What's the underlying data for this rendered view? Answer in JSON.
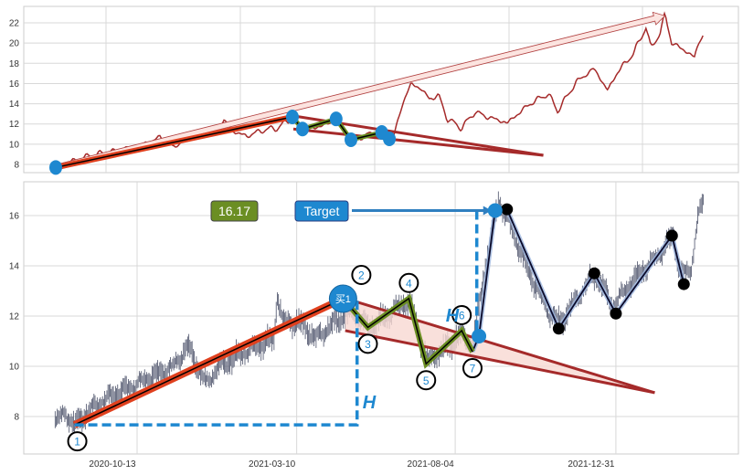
{
  "chart_data": [
    {
      "type": "line",
      "panel": "overview",
      "yticks": [
        8,
        10,
        12,
        14,
        16,
        18,
        20,
        22
      ],
      "ylim": [
        7.3,
        23.7
      ],
      "xlim_days": [
        -92,
        660
      ],
      "x_unit": "days since 2020-10-13",
      "grid": true,
      "price_series": [
        [
          -58,
          7.7
        ],
        [
          -40,
          8.3
        ],
        [
          -20,
          8.9
        ],
        [
          5,
          9.3
        ],
        [
          27,
          9.8
        ],
        [
          40,
          10.2
        ],
        [
          52,
          10.7
        ],
        [
          65,
          9.6
        ],
        [
          76,
          10.5
        ],
        [
          95,
          10.9
        ],
        [
          110,
          11.3
        ],
        [
          119,
          12.3
        ],
        [
          130,
          11.2
        ],
        [
          143,
          10.8
        ],
        [
          160,
          11.4
        ],
        [
          175,
          11.6
        ],
        [
          191,
          12.6
        ],
        [
          201,
          11.2
        ],
        [
          220,
          11.8
        ],
        [
          237,
          12.2
        ],
        [
          253,
          10.5
        ],
        [
          270,
          10.9
        ],
        [
          287,
          11.3
        ],
        [
          297,
          10.5
        ],
        [
          306,
          13.8
        ],
        [
          316,
          16
        ],
        [
          326,
          15.5
        ],
        [
          335,
          14.5
        ],
        [
          345,
          14.8
        ],
        [
          354,
          12.5
        ],
        [
          369,
          11.6
        ],
        [
          383,
          13.2
        ],
        [
          393,
          12.8
        ],
        [
          417,
          12.1
        ],
        [
          441,
          14
        ],
        [
          460,
          15
        ],
        [
          470,
          13.3
        ],
        [
          490,
          16.2
        ],
        [
          499,
          16.8
        ],
        [
          508,
          17.5
        ],
        [
          523,
          15.3
        ],
        [
          532,
          17
        ],
        [
          550,
          19
        ],
        [
          563,
          21.6
        ],
        [
          568,
          19.5
        ],
        [
          578,
          21
        ],
        [
          583,
          22.9
        ],
        [
          590,
          20
        ],
        [
          600,
          19.5
        ],
        [
          614,
          18.6
        ],
        [
          619,
          20.2
        ],
        [
          624,
          20.9
        ]
      ],
      "pivots": [
        [
          -58,
          7.7
        ],
        [
          191,
          12.7
        ],
        [
          201.6,
          11.5
        ],
        [
          237,
          12.5
        ],
        [
          252.6,
          10.44
        ],
        [
          285,
          11.16
        ],
        [
          293,
          10.53
        ]
      ],
      "wedge": {
        "upper": [
          [
            192,
            12.8
          ],
          [
            455,
            8.9
          ]
        ],
        "lower": [
          [
            192,
            11.5
          ],
          [
            455,
            8.9
          ]
        ]
      },
      "projection_arrow": [
        [
          -58,
          7.7
        ],
        [
          583,
          22.7
        ]
      ]
    },
    {
      "type": "bar",
      "panel": "detail",
      "yticks": [
        8,
        10,
        12,
        14,
        16
      ],
      "ylim": [
        6.6,
        17.4
      ],
      "xlim_days": [
        -105,
        557
      ],
      "x_unit": "days since 2020-10-13",
      "grid": true,
      "xticks": [
        {
          "label": "2020-10-13",
          "day": 0
        },
        {
          "label": "2021-03-10",
          "day": 148
        },
        {
          "label": "2021-08-04",
          "day": 295
        },
        {
          "label": "2021-12-31",
          "day": 444
        }
      ],
      "price_series": [
        [
          -76,
          7.85
        ],
        [
          -66,
          8.1
        ],
        [
          -58,
          7.67
        ],
        [
          -34,
          8.6
        ],
        [
          0,
          9.3
        ],
        [
          34,
          10
        ],
        [
          47,
          10.8
        ],
        [
          64,
          9.3
        ],
        [
          76,
          10
        ],
        [
          102,
          10.6
        ],
        [
          127,
          11.1
        ],
        [
          130,
          12.9
        ],
        [
          135,
          11.8
        ],
        [
          153,
          11.7
        ],
        [
          165,
          11.1
        ],
        [
          191,
          12
        ],
        [
          200,
          12.2
        ],
        [
          216,
          11.5
        ],
        [
          237,
          12.2
        ],
        [
          252,
          12.6
        ],
        [
          269,
          10.2
        ],
        [
          285,
          10.7
        ],
        [
          301,
          11.3
        ],
        [
          311,
          10.8
        ],
        [
          322,
          13.7
        ],
        [
          335,
          16.6
        ],
        [
          347,
          15.5
        ],
        [
          364,
          13.7
        ],
        [
          381,
          12.2
        ],
        [
          392,
          11.7
        ],
        [
          411,
          12.9
        ],
        [
          425,
          13.7
        ],
        [
          441,
          12.4
        ],
        [
          458,
          13.3
        ],
        [
          483,
          14.4
        ],
        [
          497,
          15.2
        ],
        [
          504,
          13.7
        ],
        [
          513,
          13.7
        ],
        [
          521,
          16.2
        ],
        [
          525,
          16.4
        ]
      ],
      "wave_points": [
        {
          "label": "1",
          "day": -58,
          "price": 7.67,
          "side": "below"
        },
        {
          "label": "2",
          "day": 191,
          "price": 12.69,
          "side": "above"
        },
        {
          "label": "3",
          "day": 214,
          "price": 11.55,
          "side": "below"
        },
        {
          "label": "4",
          "day": 252,
          "price": 12.7,
          "side": "above"
        },
        {
          "label": "5",
          "day": 268,
          "price": 10.1,
          "side": "below"
        },
        {
          "label": "6",
          "day": 301,
          "price": 11.42,
          "side": "above"
        },
        {
          "label": "7",
          "day": 311,
          "price": 10.58,
          "side": "below"
        }
      ],
      "breakout": {
        "day": 317,
        "price": 11.2
      },
      "target_point": {
        "day": 332,
        "price": 16.2
      },
      "swing_points": [
        [
          343,
          16.25
        ],
        [
          391,
          11.5
        ],
        [
          424,
          13.7
        ],
        [
          444,
          12.1
        ],
        [
          496,
          15.2
        ],
        [
          507,
          13.27
        ]
      ],
      "wedge": {
        "upper": [
          [
            193,
            12.7
          ],
          [
            480,
            8.95
          ]
        ],
        "lower": [
          [
            193,
            11.42
          ],
          [
            480,
            8.95
          ]
        ]
      },
      "height_measure": {
        "base_price": 7.67,
        "start_day": -58,
        "day": 204,
        "top_price": 12.7,
        "label": "H"
      },
      "target_measure": {
        "day": 315,
        "from_price": 11.42,
        "to_price": 16.2,
        "label": "H"
      },
      "buy_marker": "买1",
      "target_value": "16.17",
      "target_label": "Target"
    }
  ],
  "colors": {
    "price_line": "#a52a2a",
    "bars": "#4a5068",
    "impulse": "#e0401e",
    "zigzag": "#6b8e23",
    "wedge": "#a52a2a",
    "wedge_fill": "#f8d8d2",
    "marker": "#1e88d0",
    "swing": "#000000"
  }
}
